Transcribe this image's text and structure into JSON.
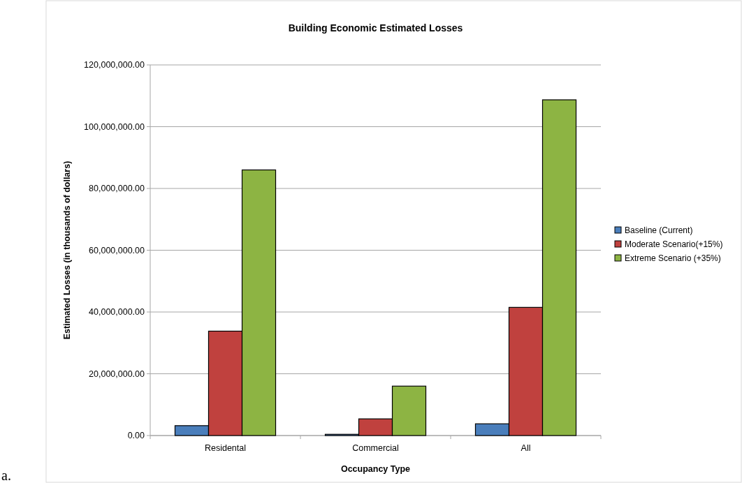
{
  "chart_data": {
    "type": "bar",
    "title": "Building Economic Estimated Losses",
    "xlabel": "Occupancy Type",
    "ylabel": "Estimated Losses (in thousands of dollars)",
    "categories": [
      "Residental",
      "Commercial",
      "All"
    ],
    "series": [
      {
        "name": "Baseline (Current)",
        "color": "#4a7ebb",
        "values": [
          3200000,
          400000,
          3800000
        ]
      },
      {
        "name": "Moderate Scenario(+15%)",
        "color": "#c0413e",
        "values": [
          33800000,
          5400000,
          41500000
        ]
      },
      {
        "name": "Extreme Scenario (+35%)",
        "color": "#8db443",
        "values": [
          86000000,
          16000000,
          108700000
        ]
      }
    ],
    "ylim": [
      0,
      120000000
    ],
    "yticks": [
      {
        "value": 0,
        "label": "0.00"
      },
      {
        "value": 20000000,
        "label": "20,000,000.00"
      },
      {
        "value": 40000000,
        "label": "40,000,000.00"
      },
      {
        "value": 60000000,
        "label": "60,000,000.00"
      },
      {
        "value": 80000000,
        "label": "80,000,000.00"
      },
      {
        "value": 100000000,
        "label": "100,000,000.00"
      },
      {
        "value": 120000000,
        "label": "120,000,000.00"
      }
    ],
    "grid": "y",
    "legend": "right",
    "annotations": [
      "a."
    ]
  }
}
